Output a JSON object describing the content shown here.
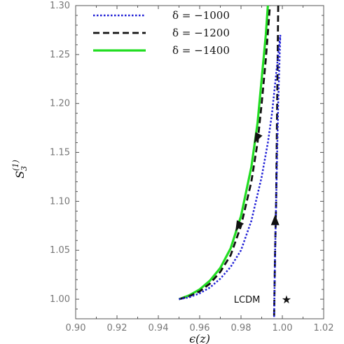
{
  "chart_data": {
    "type": "line",
    "title": "",
    "xlabel": "ϵ(z)",
    "ylabel": "S₃⁽¹⁾",
    "ylabel_base": "S",
    "ylabel_sub": "3",
    "ylabel_sup": "(1)",
    "xlim": [
      0.9,
      1.02
    ],
    "ylim": [
      0.98,
      1.3
    ],
    "x_ticks": [
      "0.90",
      "0.92",
      "0.94",
      "0.96",
      "0.98",
      "1.00",
      "1.02"
    ],
    "y_ticks": [
      "1.00",
      "1.05",
      "1.10",
      "1.15",
      "1.20",
      "1.25",
      "1.30"
    ],
    "grid": false,
    "legend_position": "top-left",
    "series": [
      {
        "name": "δ = −1000",
        "color": "#1f1fd6",
        "style": "dotted",
        "branch_rise": [
          [
            0.95,
            1.0
          ],
          [
            0.955,
            1.002
          ],
          [
            0.96,
            1.006
          ],
          [
            0.965,
            1.012
          ],
          [
            0.97,
            1.021
          ],
          [
            0.975,
            1.033
          ],
          [
            0.98,
            1.05
          ],
          [
            0.985,
            1.08
          ],
          [
            0.99,
            1.125
          ],
          [
            0.993,
            1.16
          ],
          [
            0.995,
            1.19
          ],
          [
            0.997,
            1.23
          ],
          [
            0.999,
            1.27
          ]
        ],
        "branch_return": [
          [
            0.999,
            1.27
          ],
          [
            0.998,
            1.2
          ],
          [
            0.997,
            1.1
          ],
          [
            0.9965,
            1.05
          ],
          [
            0.996,
            0.98
          ]
        ]
      },
      {
        "name": "δ = −1200",
        "color": "#111111",
        "style": "dashed",
        "branch_rise": [
          [
            0.95,
            1.0
          ],
          [
            0.955,
            1.003
          ],
          [
            0.96,
            1.008
          ],
          [
            0.965,
            1.016
          ],
          [
            0.97,
            1.028
          ],
          [
            0.975,
            1.045
          ],
          [
            0.98,
            1.075
          ],
          [
            0.985,
            1.12
          ],
          [
            0.988,
            1.16
          ],
          [
            0.99,
            1.2
          ],
          [
            0.992,
            1.245
          ],
          [
            0.994,
            1.3
          ]
        ],
        "branch_return": [
          [
            0.998,
            1.3
          ],
          [
            0.9975,
            1.2
          ],
          [
            0.997,
            1.1
          ],
          [
            0.9965,
            1.05
          ],
          [
            0.996,
            0.98
          ]
        ]
      },
      {
        "name": "δ = −1400",
        "color": "#22dd22",
        "style": "solid",
        "branch_rise": [
          [
            0.95,
            1.0
          ],
          [
            0.955,
            1.004
          ],
          [
            0.96,
            1.01
          ],
          [
            0.965,
            1.019
          ],
          [
            0.97,
            1.032
          ],
          [
            0.975,
            1.052
          ],
          [
            0.98,
            1.085
          ],
          [
            0.985,
            1.135
          ],
          [
            0.988,
            1.18
          ],
          [
            0.99,
            1.225
          ],
          [
            0.992,
            1.27
          ],
          [
            0.993,
            1.3
          ]
        ]
      }
    ],
    "arrows": [
      {
        "x": 0.988,
        "y": 1.165,
        "direction": "down-left"
      },
      {
        "x": 0.979,
        "y": 1.075,
        "direction": "down-left"
      },
      {
        "x": 0.9965,
        "y": 1.08,
        "direction": "up"
      }
    ],
    "annotations": [
      {
        "text": "LCDM",
        "x": 0.994,
        "y": 1.0,
        "anchor": "end"
      }
    ],
    "markers": [
      {
        "name": "lcdm-point",
        "x": 1.002,
        "y": 1.0,
        "symbol": "★"
      }
    ]
  }
}
